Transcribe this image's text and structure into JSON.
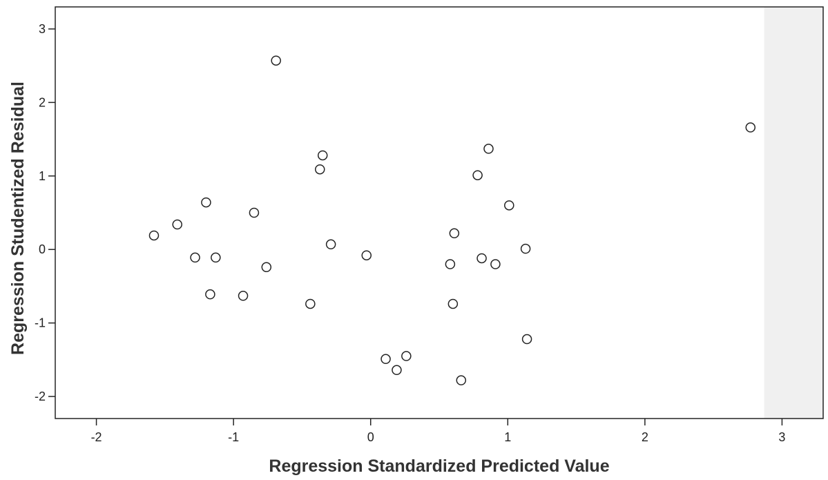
{
  "chart_data": {
    "type": "scatter",
    "xlabel": "Regression Standardized Predicted Value",
    "ylabel": "Regression Studentized Residual",
    "xlim": [
      -2.3,
      3.3
    ],
    "ylim": [
      -2.3,
      3.3
    ],
    "xticks": [
      -2,
      -1,
      0,
      1,
      2,
      3
    ],
    "yticks": [
      -2,
      -1,
      0,
      1,
      2,
      3
    ],
    "grid": false,
    "marker": "open-circle",
    "colors": {
      "marker_stroke": "#222222",
      "axis": "#222222",
      "plot_background": "#ffffff",
      "margin_background": "#f0f0f0"
    },
    "points": [
      {
        "x": -1.58,
        "y": 0.19
      },
      {
        "x": -1.41,
        "y": 0.34
      },
      {
        "x": -1.28,
        "y": -0.11
      },
      {
        "x": -1.2,
        "y": 0.64
      },
      {
        "x": -1.17,
        "y": -0.61
      },
      {
        "x": -1.13,
        "y": -0.11
      },
      {
        "x": -0.93,
        "y": -0.63
      },
      {
        "x": -0.85,
        "y": 0.5
      },
      {
        "x": -0.76,
        "y": -0.24
      },
      {
        "x": -0.69,
        "y": 2.57
      },
      {
        "x": -0.44,
        "y": -0.74
      },
      {
        "x": -0.37,
        "y": 1.09
      },
      {
        "x": -0.35,
        "y": 1.28
      },
      {
        "x": -0.29,
        "y": 0.07
      },
      {
        "x": -0.03,
        "y": -0.08
      },
      {
        "x": 0.11,
        "y": -1.49
      },
      {
        "x": 0.19,
        "y": -1.64
      },
      {
        "x": 0.26,
        "y": -1.45
      },
      {
        "x": 0.58,
        "y": -0.2
      },
      {
        "x": 0.6,
        "y": -0.74
      },
      {
        "x": 0.61,
        "y": 0.22
      },
      {
        "x": 0.66,
        "y": -1.78
      },
      {
        "x": 0.78,
        "y": 1.01
      },
      {
        "x": 0.81,
        "y": -0.12
      },
      {
        "x": 0.86,
        "y": 1.37
      },
      {
        "x": 0.91,
        "y": -0.2
      },
      {
        "x": 1.01,
        "y": 0.6
      },
      {
        "x": 1.13,
        "y": 0.01
      },
      {
        "x": 1.14,
        "y": -1.22
      },
      {
        "x": 2.77,
        "y": 1.66
      }
    ]
  }
}
